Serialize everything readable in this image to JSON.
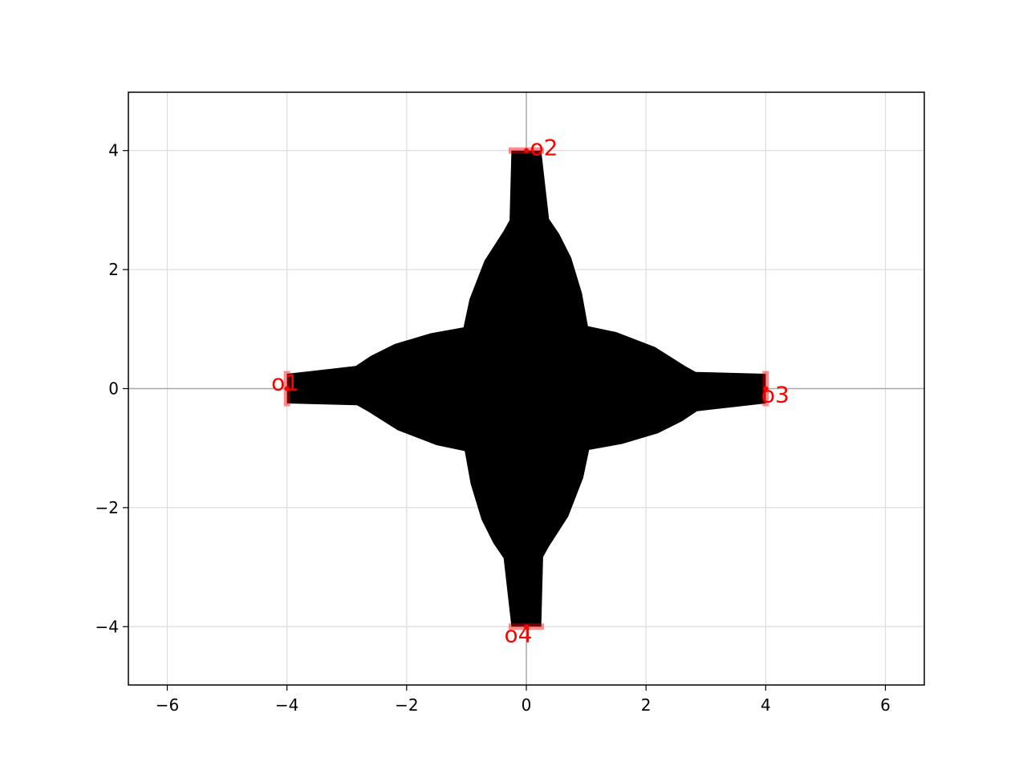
{
  "chart_data": {
    "type": "shape",
    "title": "",
    "xlabel": "",
    "ylabel": "",
    "xlim": [
      -6.65,
      6.65
    ],
    "ylim": [
      -4.98,
      4.98
    ],
    "xticks": [
      -6,
      -4,
      -2,
      0,
      2,
      4,
      6
    ],
    "yticks": [
      -4,
      -2,
      0,
      2,
      4
    ],
    "xtick_labels": [
      "−6",
      "−4",
      "−2",
      "0",
      "2",
      "4",
      "6"
    ],
    "ytick_labels": [
      "−4",
      "−2",
      "0",
      "2",
      "4"
    ],
    "grid": true,
    "fill_color": "#000000",
    "port_color": "#ff0000",
    "outline": [
      [
        -4.0,
        0.25
      ],
      [
        -2.85,
        0.38
      ],
      [
        -2.6,
        0.55
      ],
      [
        -2.2,
        0.75
      ],
      [
        -1.6,
        0.93
      ],
      [
        -1.05,
        1.03
      ],
      [
        -0.95,
        1.5
      ],
      [
        -0.7,
        2.15
      ],
      [
        -0.38,
        2.65
      ],
      [
        -0.28,
        2.83
      ],
      [
        -0.25,
        4.0
      ],
      [
        0.25,
        4.0
      ],
      [
        0.38,
        2.85
      ],
      [
        0.55,
        2.6
      ],
      [
        0.75,
        2.2
      ],
      [
        0.93,
        1.6
      ],
      [
        1.03,
        1.05
      ],
      [
        1.5,
        0.95
      ],
      [
        2.15,
        0.7
      ],
      [
        2.65,
        0.38
      ],
      [
        2.83,
        0.28
      ],
      [
        4.0,
        0.25
      ],
      [
        4.0,
        -0.25
      ],
      [
        2.85,
        -0.38
      ],
      [
        2.6,
        -0.55
      ],
      [
        2.2,
        -0.75
      ],
      [
        1.6,
        -0.93
      ],
      [
        1.05,
        -1.03
      ],
      [
        0.95,
        -1.5
      ],
      [
        0.7,
        -2.15
      ],
      [
        0.38,
        -2.65
      ],
      [
        0.28,
        -2.83
      ],
      [
        0.25,
        -4.0
      ],
      [
        -0.25,
        -4.0
      ],
      [
        -0.38,
        -2.85
      ],
      [
        -0.55,
        -2.6
      ],
      [
        -0.75,
        -2.2
      ],
      [
        -0.93,
        -1.6
      ],
      [
        -1.03,
        -1.05
      ],
      [
        -1.5,
        -0.95
      ],
      [
        -2.15,
        -0.7
      ],
      [
        -2.65,
        -0.38
      ],
      [
        -2.83,
        -0.28
      ],
      [
        -4.0,
        -0.25
      ]
    ],
    "ports": [
      {
        "name": "o1",
        "x": -4.0,
        "y": 0.0,
        "orientation": "vertical"
      },
      {
        "name": "o2",
        "x": 0.0,
        "y": 4.0,
        "orientation": "horizontal"
      },
      {
        "name": "o3",
        "x": 4.0,
        "y": 0.0,
        "orientation": "vertical"
      },
      {
        "name": "o4",
        "x": 0.0,
        "y": -4.0,
        "orientation": "horizontal"
      }
    ]
  }
}
